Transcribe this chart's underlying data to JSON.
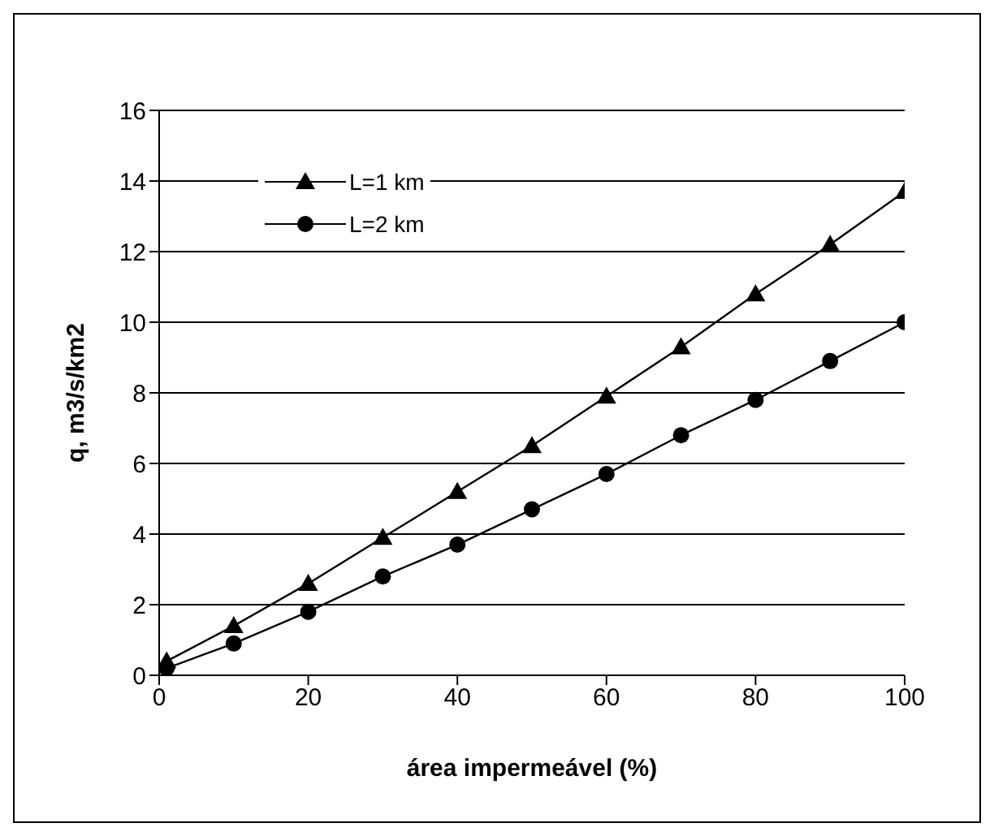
{
  "chart_data": {
    "type": "line",
    "xlabel": "área impermeável (%)",
    "ylabel": "q, m3/s/km2",
    "x": [
      1,
      10,
      20,
      30,
      40,
      50,
      60,
      70,
      80,
      90,
      100
    ],
    "series": [
      {
        "name": "L=1 km",
        "color": "#000000",
        "marker": "triangle",
        "values": [
          0.4,
          1.4,
          2.6,
          3.9,
          5.2,
          6.5,
          7.9,
          9.3,
          10.8,
          12.2,
          13.7
        ]
      },
      {
        "name": "L=2 km",
        "color": "#000000",
        "marker": "circle",
        "values": [
          0.2,
          0.9,
          1.8,
          2.8,
          3.7,
          4.7,
          5.7,
          6.8,
          7.8,
          8.9,
          10.0
        ]
      }
    ],
    "xlim": [
      0,
      100
    ],
    "xticks": [
      0,
      20,
      40,
      60,
      80,
      100
    ],
    "ylim": [
      0,
      16
    ],
    "yticks": [
      0,
      2,
      4,
      6,
      8,
      10,
      12,
      14,
      16
    ],
    "grid": "y",
    "legend": "top left",
    "line_style": "solid"
  }
}
